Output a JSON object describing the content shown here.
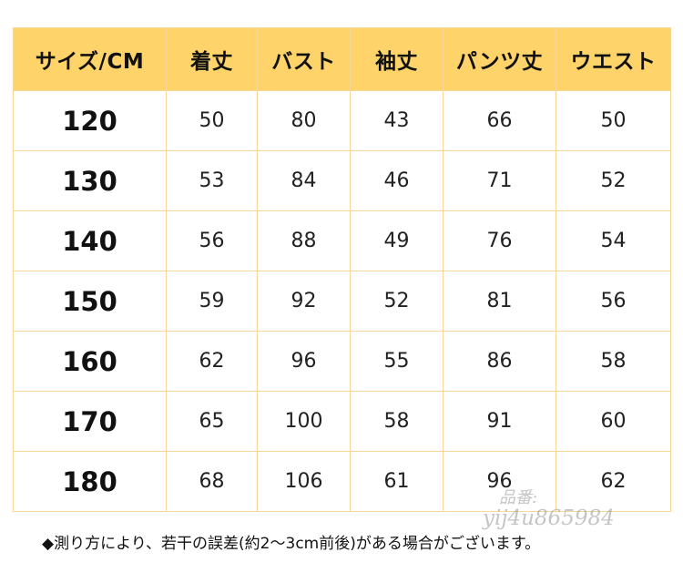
{
  "table": {
    "headers": [
      "サイズ/CM",
      "着丈",
      "バスト",
      "袖丈",
      "パンツ丈",
      "ウエスト"
    ],
    "rows": [
      [
        "120",
        "50",
        "80",
        "43",
        "66",
        "50"
      ],
      [
        "130",
        "53",
        "84",
        "46",
        "71",
        "52"
      ],
      [
        "140",
        "56",
        "88",
        "49",
        "76",
        "54"
      ],
      [
        "150",
        "59",
        "92",
        "52",
        "81",
        "56"
      ],
      [
        "160",
        "62",
        "96",
        "55",
        "86",
        "58"
      ],
      [
        "170",
        "65",
        "100",
        "58",
        "91",
        "60"
      ],
      [
        "180",
        "68",
        "106",
        "61",
        "96",
        "62"
      ]
    ]
  },
  "note": "◆測り方により、若干の誤差(約2～3cm前後)がある場合がございます。",
  "watermark": {
    "line1": "品番:",
    "line2": "yij4u865984"
  },
  "colors": {
    "header_bg": "#fdd36a",
    "border": "#f6d79a"
  }
}
